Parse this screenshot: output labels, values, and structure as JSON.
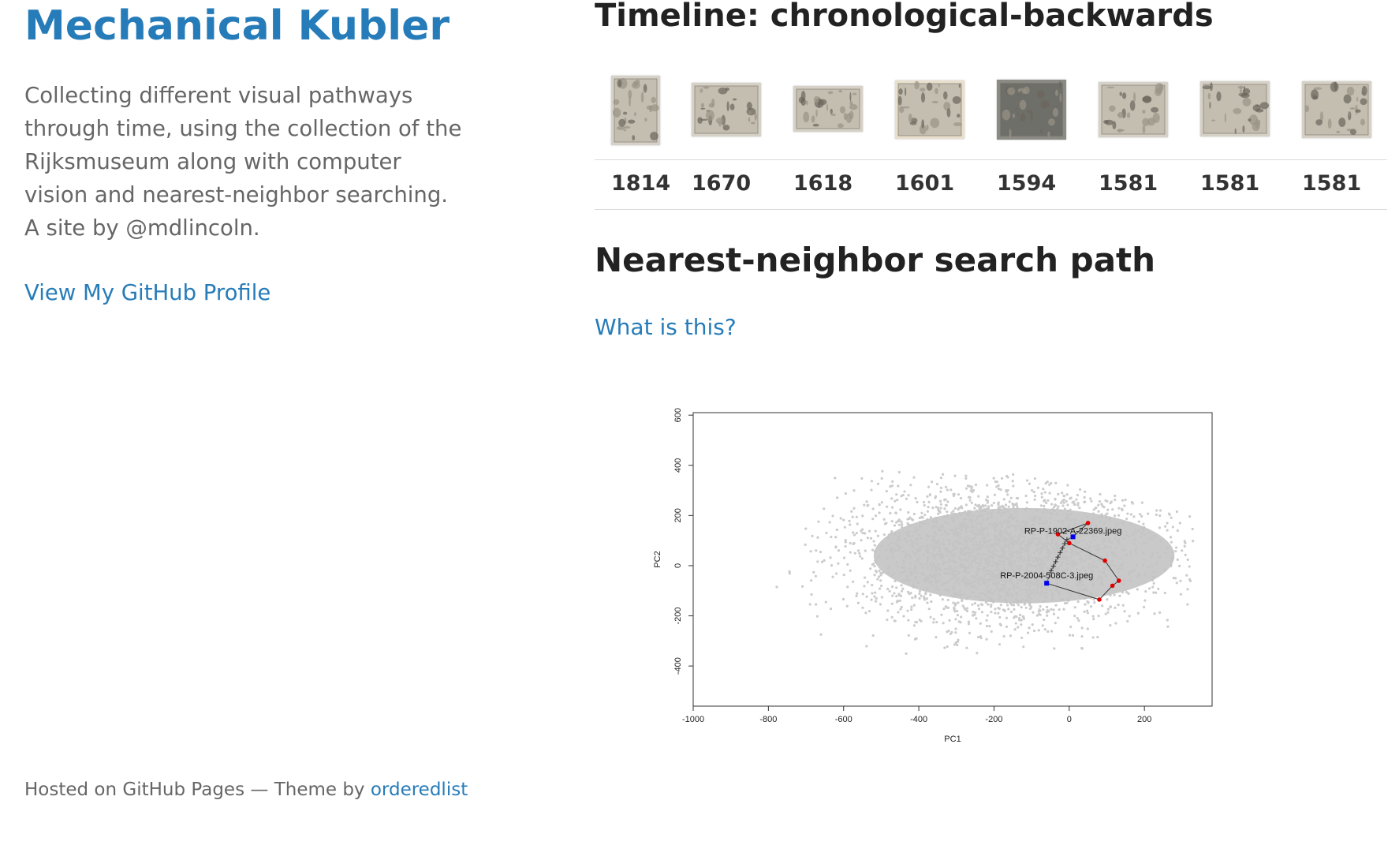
{
  "site": {
    "title": "Mechanical Kubler",
    "description": "Collecting different visual pathways through time, using the collection of the Rijksmuseum along with computer vision and nearest-neighbor searching. A site by @mdlincoln.",
    "github_link": "View My GitHub Profile",
    "footer_prefix": "Hosted on GitHub Pages — Theme by ",
    "footer_link": "orderedlist"
  },
  "timeline": {
    "title": "Timeline: chronological-backwards",
    "thumbnail_icon": "artwork-thumbnail-icon",
    "years": [
      "1814",
      "1670",
      "1618",
      "1601",
      "1594",
      "1581",
      "1581",
      "1581"
    ]
  },
  "nearest_neighbor": {
    "title": "Nearest-neighbor search path",
    "what_link": "What is this?"
  },
  "colors": {
    "link": "#267CB9",
    "cloud": "#c3c3c3",
    "path_point": "#e00000",
    "endpoint": "#0000ee"
  },
  "chart_data": {
    "type": "scatter",
    "xlabel": "PC1",
    "ylabel": "PC2",
    "xlim": [
      -1000,
      380
    ],
    "ylim": [
      -560,
      610
    ],
    "xticks": [
      -1000,
      -800,
      -600,
      -400,
      -200,
      0,
      200
    ],
    "yticks": [
      -400,
      -200,
      0,
      200,
      400,
      600
    ],
    "series": [
      {
        "role": "path",
        "points": [
          [
            -60,
            -70
          ],
          [
            80,
            -135
          ],
          [
            115,
            -80
          ],
          [
            132,
            -60
          ],
          [
            95,
            20
          ],
          [
            0,
            90
          ],
          [
            -30,
            125
          ],
          [
            50,
            170
          ],
          [
            10,
            115
          ]
        ]
      },
      {
        "role": "interpolation-crosses",
        "points": [
          [
            -48,
            -20
          ],
          [
            -42,
            -2
          ],
          [
            -36,
            16
          ],
          [
            -30,
            34
          ],
          [
            -24,
            52
          ],
          [
            -18,
            70
          ],
          [
            -12,
            88
          ],
          [
            -6,
            104
          ]
        ]
      },
      {
        "role": "endpoints",
        "points": [
          [
            -60,
            -70
          ],
          [
            10,
            115
          ]
        ]
      }
    ],
    "annotations": [
      {
        "text": "RP-P-1902-A-22369.jpeg",
        "x": 10,
        "y": 140
      },
      {
        "text": "RP-P-2004-508C-3.jpeg",
        "x": -60,
        "y": -38
      }
    ]
  }
}
